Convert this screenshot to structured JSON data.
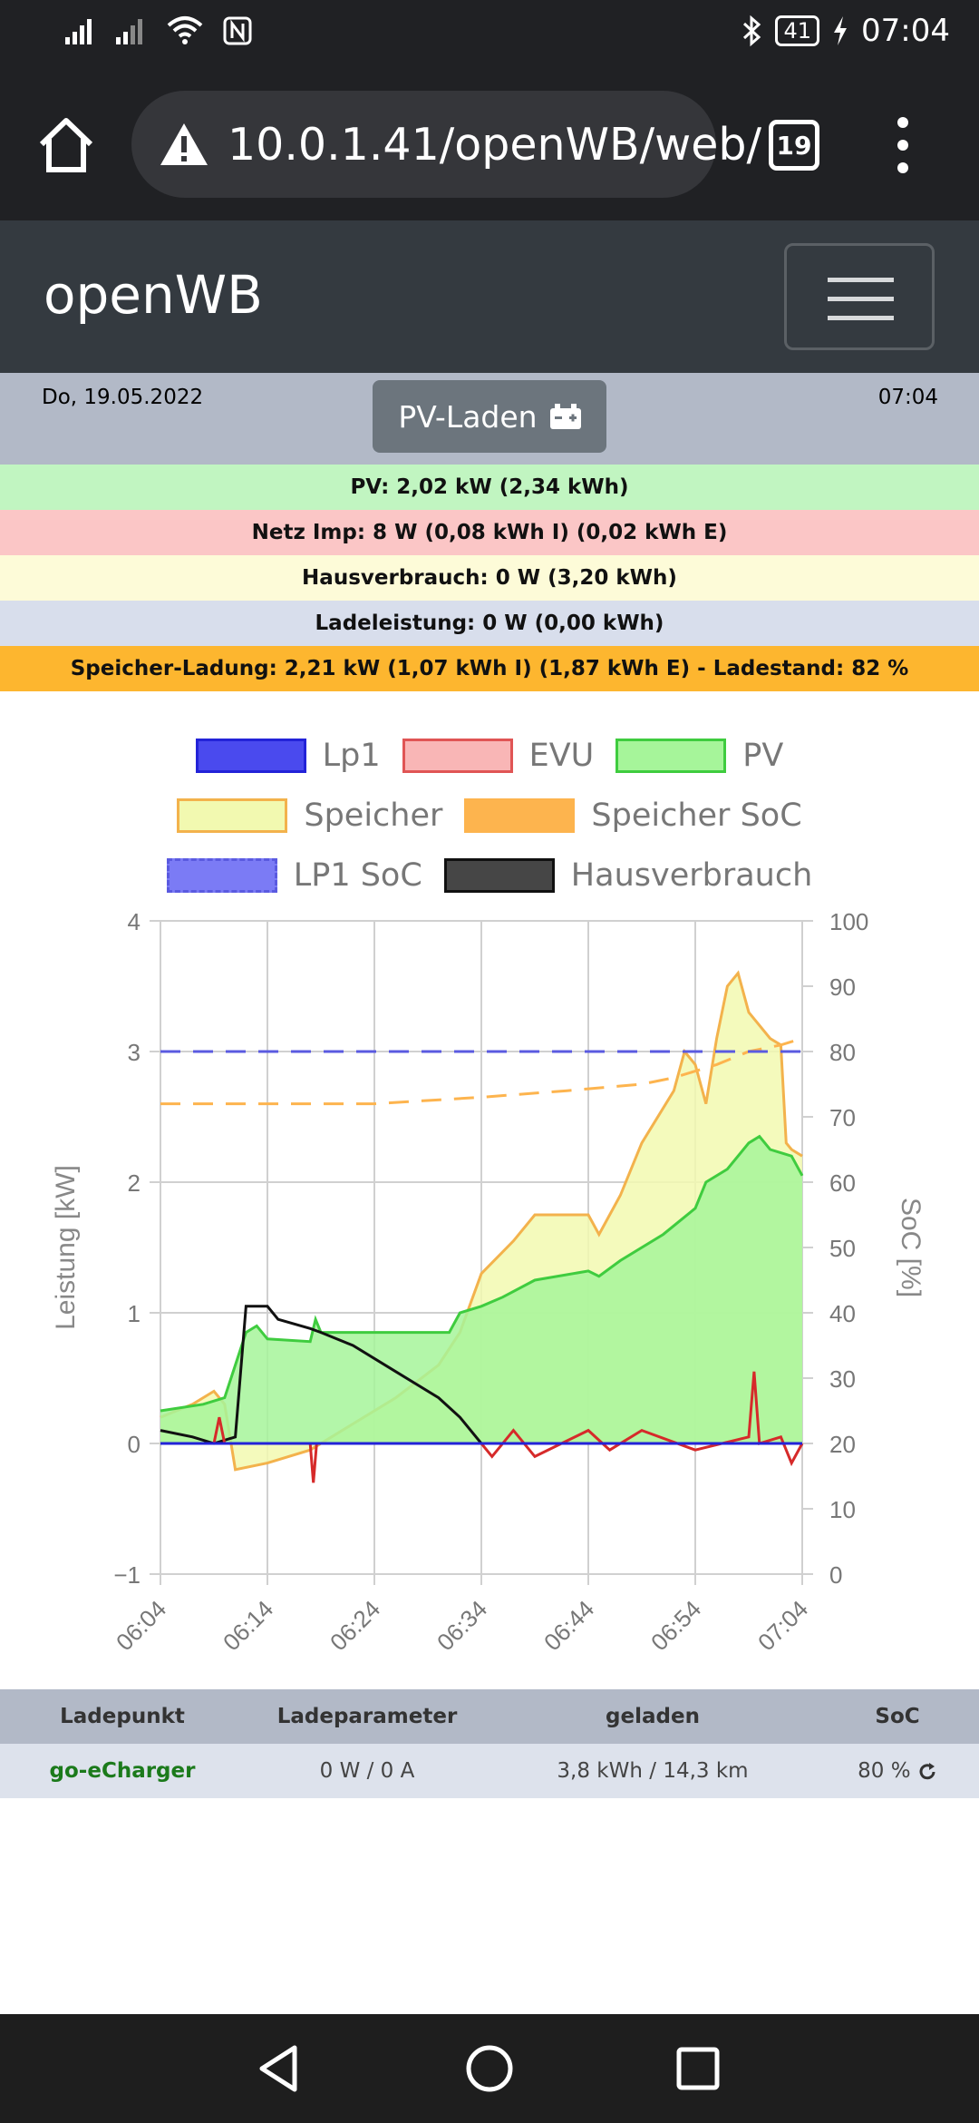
{
  "status_bar": {
    "battery": "41",
    "time": "07:04"
  },
  "browser": {
    "url": "10.0.1.41/openWB/web/",
    "tab_count": "19"
  },
  "navbar": {
    "brand": "openWB"
  },
  "header": {
    "date": "Do, 19.05.2022",
    "time": "07:04",
    "mode_button": "PV-Laden"
  },
  "info_rows": [
    {
      "text": "PV: 2,02 kW (2,34 kWh)",
      "color": "#c1f5c1"
    },
    {
      "text": "Netz Imp: 8 W (0,08 kWh I) (0,02 kWh E)",
      "color": "#fbc6c6"
    },
    {
      "text": "Hausverbrauch: 0 W (3,20 kWh)",
      "color": "#fdfbd8"
    },
    {
      "text": "Ladeleistung: 0 W (0,00 kWh)",
      "color": "#d8deec"
    },
    {
      "text": "Speicher-Ladung: 2,21 kW (1,07 kWh I) (1,87 kWh E) - Ladestand: 82 %",
      "color": "#fdb62f"
    }
  ],
  "chart_data": {
    "type": "line",
    "x": [
      "06:04",
      "06:14",
      "06:24",
      "06:34",
      "06:44",
      "06:54",
      "07:04"
    ],
    "ylabel": "Leistung [kW]",
    "y2label": "SoC [%]",
    "ylim": [
      -1,
      4
    ],
    "y2lim": [
      0,
      100
    ],
    "yticks": [
      "−1",
      "0",
      "1",
      "2",
      "3",
      "4"
    ],
    "y2ticks": [
      "0",
      "10",
      "20",
      "30",
      "40",
      "50",
      "60",
      "70",
      "80",
      "90",
      "100"
    ],
    "grid": true,
    "legend": [
      {
        "name": "Lp1",
        "fill": "#4a4aee",
        "border": "#2323d8",
        "dashed": false
      },
      {
        "name": "EVU",
        "fill": "#f9b6b6",
        "border": "#e05555",
        "dashed": false
      },
      {
        "name": "PV",
        "fill": "#a6f59a",
        "border": "#3fcc3f",
        "dashed": false
      },
      {
        "name": "Speicher",
        "fill": "#f2f9b0",
        "border": "#f3b24c",
        "dashed": false
      },
      {
        "name": "Speicher SoC",
        "fill": "#fdb44e",
        "border": "#fdb44e",
        "dashed": true
      },
      {
        "name": "LP1 SoC",
        "fill": "#7b7bf5",
        "border": "#5a5ae0",
        "dashed": true
      },
      {
        "name": "Hausverbrauch",
        "fill": "#464646",
        "border": "#111111",
        "dashed": false
      }
    ],
    "series": [
      {
        "name": "PV",
        "points": [
          [
            0,
            0.25
          ],
          [
            4,
            0.3
          ],
          [
            6,
            0.35
          ],
          [
            7,
            0.6
          ],
          [
            8,
            0.85
          ],
          [
            9,
            0.9
          ],
          [
            10,
            0.8
          ],
          [
            14,
            0.78
          ],
          [
            14.5,
            0.95
          ],
          [
            15,
            0.85
          ],
          [
            19,
            0.85
          ],
          [
            27,
            0.85
          ],
          [
            28,
            1.0
          ],
          [
            30,
            1.05
          ],
          [
            32,
            1.12
          ],
          [
            35,
            1.25
          ],
          [
            40,
            1.32
          ],
          [
            41,
            1.28
          ],
          [
            43,
            1.4
          ],
          [
            47,
            1.6
          ],
          [
            50,
            1.8
          ],
          [
            51,
            2.0
          ],
          [
            53,
            2.1
          ],
          [
            55,
            2.3
          ],
          [
            56,
            2.35
          ],
          [
            57,
            2.25
          ],
          [
            59,
            2.2
          ],
          [
            60,
            2.05
          ]
        ]
      },
      {
        "name": "Speicher",
        "points": [
          [
            0,
            0.2
          ],
          [
            3,
            0.3
          ],
          [
            5,
            0.4
          ],
          [
            6,
            0.3
          ],
          [
            7,
            -0.2
          ],
          [
            10,
            -0.15
          ],
          [
            14,
            -0.05
          ],
          [
            18,
            0.15
          ],
          [
            22,
            0.35
          ],
          [
            26,
            0.6
          ],
          [
            28,
            0.85
          ],
          [
            30,
            1.3
          ],
          [
            33,
            1.55
          ],
          [
            35,
            1.75
          ],
          [
            40,
            1.75
          ],
          [
            41,
            1.6
          ],
          [
            43,
            1.9
          ],
          [
            45,
            2.3
          ],
          [
            48,
            2.7
          ],
          [
            49,
            3.0
          ],
          [
            50,
            2.9
          ],
          [
            51,
            2.6
          ],
          [
            52,
            3.1
          ],
          [
            53,
            3.5
          ],
          [
            54,
            3.6
          ],
          [
            55,
            3.3
          ],
          [
            56,
            3.2
          ],
          [
            57,
            3.1
          ],
          [
            58,
            3.05
          ],
          [
            58.5,
            2.3
          ],
          [
            59,
            2.25
          ],
          [
            60,
            2.2
          ]
        ]
      },
      {
        "name": "Hausverbrauch",
        "points": [
          [
            0,
            0.1
          ],
          [
            3,
            0.05
          ],
          [
            5,
            0.0
          ],
          [
            7,
            0.05
          ],
          [
            8,
            1.05
          ],
          [
            10,
            1.05
          ],
          [
            11,
            0.95
          ],
          [
            14,
            0.88
          ],
          [
            15,
            0.85
          ],
          [
            18,
            0.75
          ],
          [
            22,
            0.55
          ],
          [
            26,
            0.35
          ],
          [
            28,
            0.2
          ],
          [
            30,
            0.0
          ],
          [
            60,
            0.0
          ]
        ]
      },
      {
        "name": "EVU",
        "points": [
          [
            0,
            0.0
          ],
          [
            5,
            0.0
          ],
          [
            5.5,
            0.2
          ],
          [
            6,
            0.0
          ],
          [
            14,
            0.0
          ],
          [
            14.3,
            -0.3
          ],
          [
            14.6,
            0.0
          ],
          [
            30,
            0.0
          ],
          [
            31,
            -0.1
          ],
          [
            33,
            0.1
          ],
          [
            35,
            -0.1
          ],
          [
            40,
            0.1
          ],
          [
            42,
            -0.05
          ],
          [
            45,
            0.1
          ],
          [
            50,
            -0.05
          ],
          [
            55,
            0.05
          ],
          [
            55.5,
            0.55
          ],
          [
            56,
            0.0
          ],
          [
            58,
            0.05
          ],
          [
            59,
            -0.15
          ],
          [
            60,
            0.0
          ]
        ]
      },
      {
        "name": "Lp1",
        "points": [
          [
            0,
            0.0
          ],
          [
            60,
            0.0
          ]
        ]
      },
      {
        "name": "Speicher SoC",
        "points": [
          [
            0,
            72
          ],
          [
            10,
            72
          ],
          [
            20,
            72
          ],
          [
            30,
            73
          ],
          [
            38,
            74
          ],
          [
            45,
            75
          ],
          [
            48,
            76
          ],
          [
            50,
            77
          ],
          [
            52,
            78
          ],
          [
            55,
            80
          ],
          [
            58,
            81
          ],
          [
            60,
            82
          ]
        ]
      },
      {
        "name": "LP1 SoC",
        "points": [
          [
            0,
            80
          ],
          [
            60,
            80
          ]
        ]
      }
    ]
  },
  "table": {
    "headers": [
      "Ladepunkt",
      "Ladeparameter",
      "geladen",
      "SoC"
    ],
    "rows": [
      {
        "ladepunkt": "go-eCharger",
        "parameter": "0 W / 0 A",
        "geladen": "3,8 kWh / 14,3 km",
        "soc": "80 %"
      }
    ]
  }
}
